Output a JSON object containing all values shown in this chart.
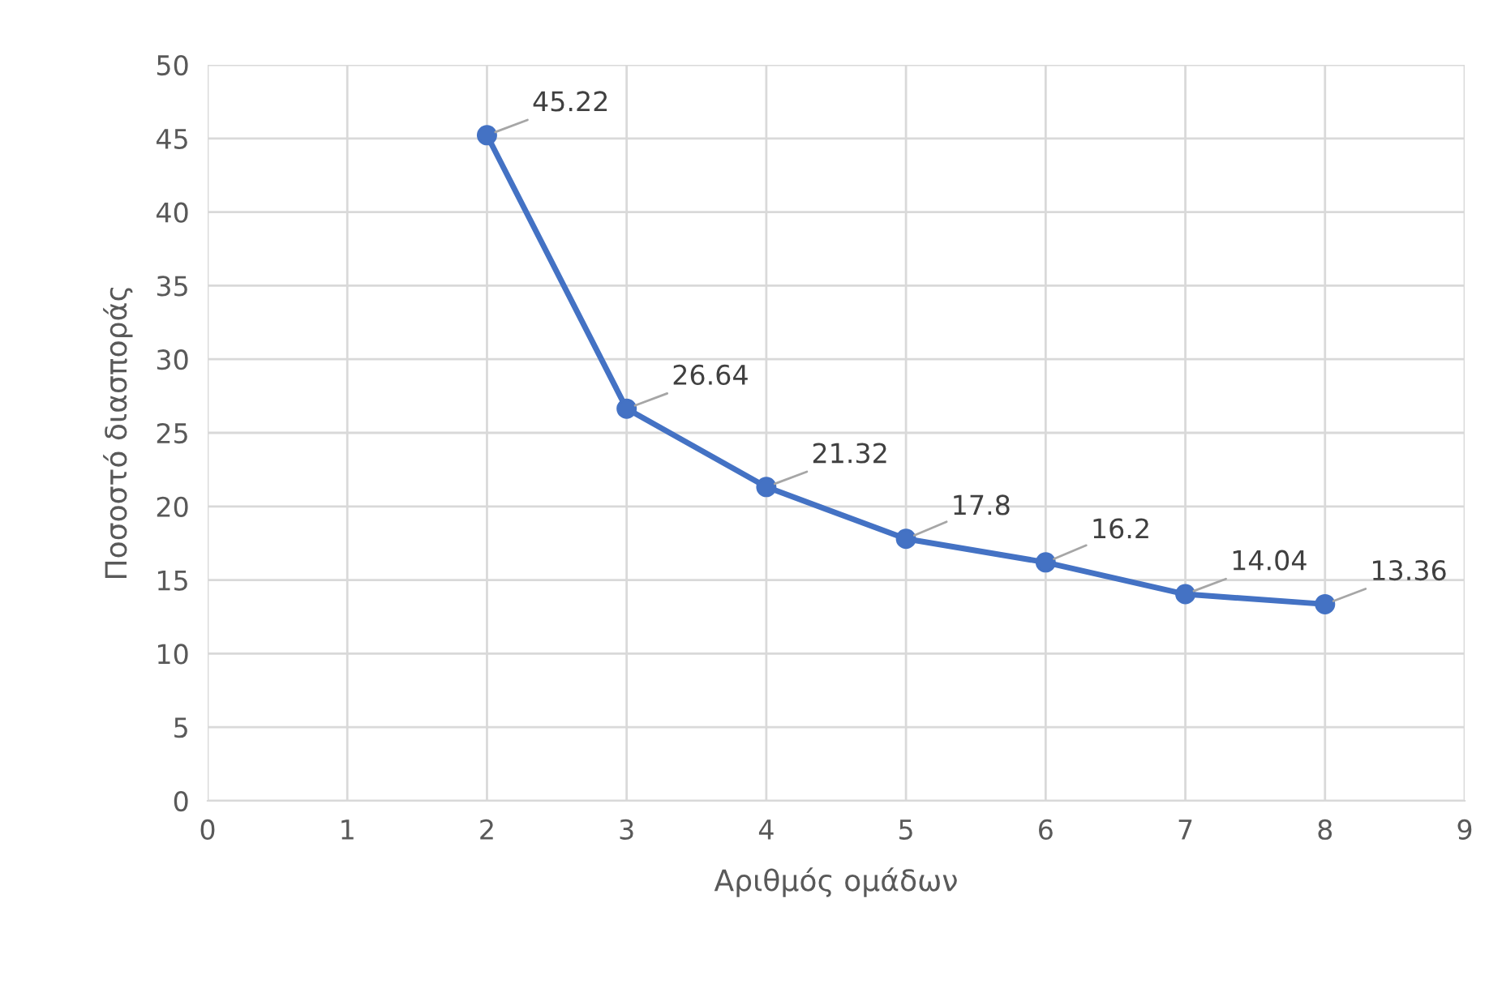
{
  "chart_data": {
    "type": "line",
    "xlabel": "Αριθμός ομάδων",
    "ylabel": "Ποσοστό διασποράς",
    "x": [
      2,
      3,
      4,
      5,
      6,
      7,
      8
    ],
    "series": [
      {
        "color": "#4472c4",
        "values": [
          45.22,
          26.64,
          21.32,
          17.8,
          16.2,
          14.04,
          13.36
        ]
      }
    ],
    "xlim": [
      0,
      9
    ],
    "xticks": [
      0,
      1,
      2,
      3,
      4,
      5,
      6,
      7,
      8,
      9
    ],
    "ylim": [
      0,
      50
    ],
    "yticks": [
      0,
      5,
      10,
      15,
      20,
      25,
      30,
      35,
      40,
      45,
      50
    ],
    "grid": true,
    "marker": "circle",
    "line_style": "solid",
    "data_labels": true
  }
}
